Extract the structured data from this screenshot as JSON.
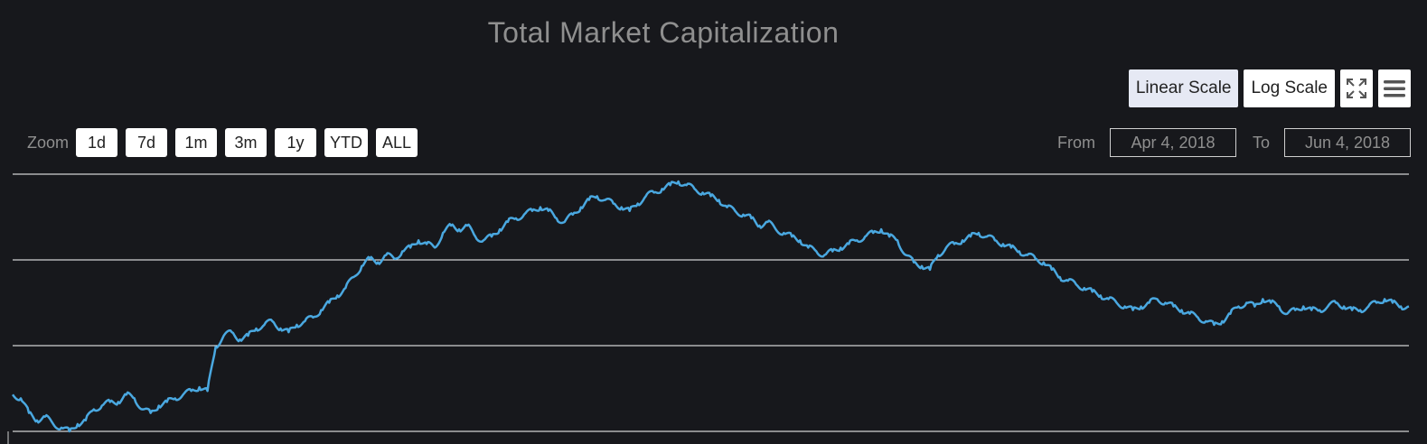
{
  "chart": {
    "title": "Total Market Capitalization"
  },
  "scale_buttons": {
    "linear": "Linear Scale",
    "log": "Log Scale",
    "fullscreen_icon": "fullscreen-icon",
    "menu_icon": "menu-icon",
    "active": "Linear Scale"
  },
  "zoom": {
    "label": "Zoom",
    "options": [
      "1d",
      "7d",
      "1m",
      "3m",
      "1y",
      "YTD",
      "ALL"
    ]
  },
  "range": {
    "from_label": "From",
    "from_value": "Apr 4, 2018",
    "to_label": "To",
    "to_value": "Jun 4, 2018"
  },
  "colors": {
    "background": "#17181c",
    "line": "#4aa8e0",
    "grid": "#ffffff"
  },
  "chart_data": {
    "type": "line",
    "title": "Total Market Capitalization",
    "xlabel": "",
    "ylabel": "",
    "grid": true,
    "series": [
      {
        "values": [
          50,
          49,
          45,
          43,
          44,
          42,
          41,
          40,
          42,
          43,
          46,
          47,
          48,
          48,
          50,
          49,
          46,
          45,
          47,
          48,
          49,
          50,
          51,
          52,
          51,
          63,
          66,
          67,
          65,
          66,
          68,
          69,
          70,
          68,
          67,
          69,
          70,
          71,
          73,
          75,
          77,
          79,
          82,
          85,
          87,
          86,
          88,
          87,
          89,
          90,
          92,
          91,
          90,
          94,
          96,
          95,
          96,
          93,
          92,
          93,
          95,
          97,
          98,
          99,
          100,
          101,
          100,
          98,
          97,
          99,
          101,
          103,
          104,
          103,
          102,
          101,
          100,
          102,
          104,
          105,
          106,
          107,
          108,
          107,
          106,
          105,
          104,
          103,
          101,
          100,
          99,
          98,
          96,
          97,
          95,
          94,
          93,
          92,
          90,
          89,
          88,
          89,
          90,
          91,
          92,
          93,
          94,
          95,
          93,
          92,
          88,
          86,
          85,
          84,
          88,
          90,
          91,
          92,
          93,
          94,
          93,
          92,
          91,
          90,
          89,
          88,
          87,
          86,
          84,
          82,
          81,
          80,
          79,
          78,
          77,
          76,
          75,
          74,
          73,
          74,
          75,
          76,
          75,
          74,
          73,
          72,
          71,
          70,
          69,
          70,
          72,
          74,
          75,
          74,
          76,
          75,
          74,
          72,
          73,
          74,
          73,
          73,
          74,
          75,
          74,
          73,
          73,
          74,
          75,
          76,
          75,
          74,
          74
        ]
      }
    ],
    "y_range": [
      40,
      110
    ]
  }
}
